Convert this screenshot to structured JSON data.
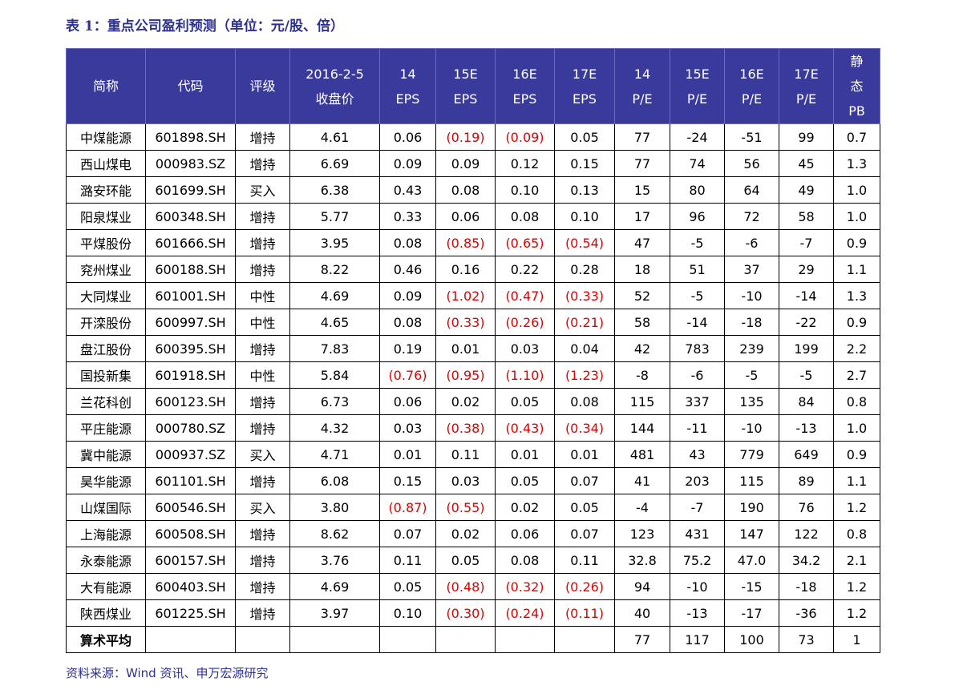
{
  "title": "表 1：重点公司盈利预测（单位：元/股、倍）",
  "table": {
    "header": [
      [
        "简称"
      ],
      [
        "代码"
      ],
      [
        "评级"
      ],
      [
        "2016-2-5",
        "收盘价"
      ],
      [
        "14",
        "EPS"
      ],
      [
        "15E",
        "EPS"
      ],
      [
        "16E",
        "EPS"
      ],
      [
        "17E",
        "EPS"
      ],
      [
        "14",
        "P/E"
      ],
      [
        "15E",
        "P/E"
      ],
      [
        "16E",
        "P/E"
      ],
      [
        "17E",
        "P/E"
      ],
      [
        "静",
        "态",
        "PB"
      ]
    ],
    "rows": [
      [
        "中煤能源",
        "601898.SH",
        "增持",
        "4.61",
        "0.06",
        "(0.19)",
        "(0.09)",
        "0.05",
        "77",
        "-24",
        "-51",
        "99",
        "0.7"
      ],
      [
        "西山煤电",
        "000983.SZ",
        "增持",
        "6.69",
        "0.09",
        "0.09",
        "0.12",
        "0.15",
        "77",
        "74",
        "56",
        "45",
        "1.3"
      ],
      [
        "潞安环能",
        "601699.SH",
        "买入",
        "6.38",
        "0.43",
        "0.08",
        "0.10",
        "0.13",
        "15",
        "80",
        "64",
        "49",
        "1.0"
      ],
      [
        "阳泉煤业",
        "600348.SH",
        "增持",
        "5.77",
        "0.33",
        "0.06",
        "0.08",
        "0.10",
        "17",
        "96",
        "72",
        "58",
        "1.0"
      ],
      [
        "平煤股份",
        "601666.SH",
        "增持",
        "3.95",
        "0.08",
        "(0.85)",
        "(0.65)",
        "(0.54)",
        "47",
        "-5",
        "-6",
        "-7",
        "0.9"
      ],
      [
        "兖州煤业",
        "600188.SH",
        "增持",
        "8.22",
        "0.46",
        "0.16",
        "0.22",
        "0.28",
        "18",
        "51",
        "37",
        "29",
        "1.1"
      ],
      [
        "大同煤业",
        "601001.SH",
        "中性",
        "4.69",
        "0.09",
        "(1.02)",
        "(0.47)",
        "(0.33)",
        "52",
        "-5",
        "-10",
        "-14",
        "1.3"
      ],
      [
        "开滦股份",
        "600997.SH",
        "中性",
        "4.65",
        "0.08",
        "(0.33)",
        "(0.26)",
        "(0.21)",
        "58",
        "-14",
        "-18",
        "-22",
        "0.9"
      ],
      [
        "盘江股份",
        "600395.SH",
        "增持",
        "7.83",
        "0.19",
        "0.01",
        "0.03",
        "0.04",
        "42",
        "783",
        "239",
        "199",
        "2.2"
      ],
      [
        "国投新集",
        "601918.SH",
        "中性",
        "5.84",
        "(0.76)",
        "(0.95)",
        "(1.10)",
        "(1.23)",
        "-8",
        "-6",
        "-5",
        "-5",
        "2.7"
      ],
      [
        "兰花科创",
        "600123.SH",
        "增持",
        "6.73",
        "0.06",
        "0.02",
        "0.05",
        "0.08",
        "115",
        "337",
        "135",
        "84",
        "0.8"
      ],
      [
        "平庄能源",
        "000780.SZ",
        "增持",
        "4.32",
        "0.03",
        "(0.38)",
        "(0.43)",
        "(0.34)",
        "144",
        "-11",
        "-10",
        "-13",
        "1.0"
      ],
      [
        "冀中能源",
        "000937.SZ",
        "买入",
        "4.71",
        "0.01",
        "0.11",
        "0.01",
        "0.01",
        "481",
        "43",
        "779",
        "649",
        "0.9"
      ],
      [
        "昊华能源",
        "601101.SH",
        "增持",
        "6.08",
        "0.15",
        "0.03",
        "0.05",
        "0.07",
        "41",
        "203",
        "115",
        "89",
        "1.1"
      ],
      [
        "山煤国际",
        "600546.SH",
        "买入",
        "3.80",
        "(0.87)",
        "(0.55)",
        "0.02",
        "0.05",
        "-4",
        "-7",
        "190",
        "76",
        "1.2"
      ],
      [
        "上海能源",
        "600508.SH",
        "增持",
        "8.62",
        "0.07",
        "0.02",
        "0.06",
        "0.07",
        "123",
        "431",
        "147",
        "122",
        "0.8"
      ],
      [
        "永泰能源",
        "600157.SH",
        "增持",
        "3.76",
        "0.11",
        "0.05",
        "0.08",
        "0.11",
        "32.8",
        "75.2",
        "47.0",
        "34.2",
        "2.1"
      ],
      [
        "大有能源",
        "600403.SH",
        "增持",
        "4.69",
        "0.05",
        "(0.48)",
        "(0.32)",
        "(0.26)",
        "94",
        "-10",
        "-15",
        "-18",
        "1.2"
      ],
      [
        "陕西煤业",
        "601225.SH",
        "增持",
        "3.97",
        "0.10",
        "(0.30)",
        "(0.24)",
        "(0.11)",
        "40",
        "-13",
        "-17",
        "-36",
        "1.2"
      ]
    ],
    "average": {
      "label": "算术平均",
      "values": [
        "77",
        "117",
        "100",
        "73",
        "1"
      ]
    }
  },
  "source": "资料来源：Wind 资讯、申万宏源研究"
}
